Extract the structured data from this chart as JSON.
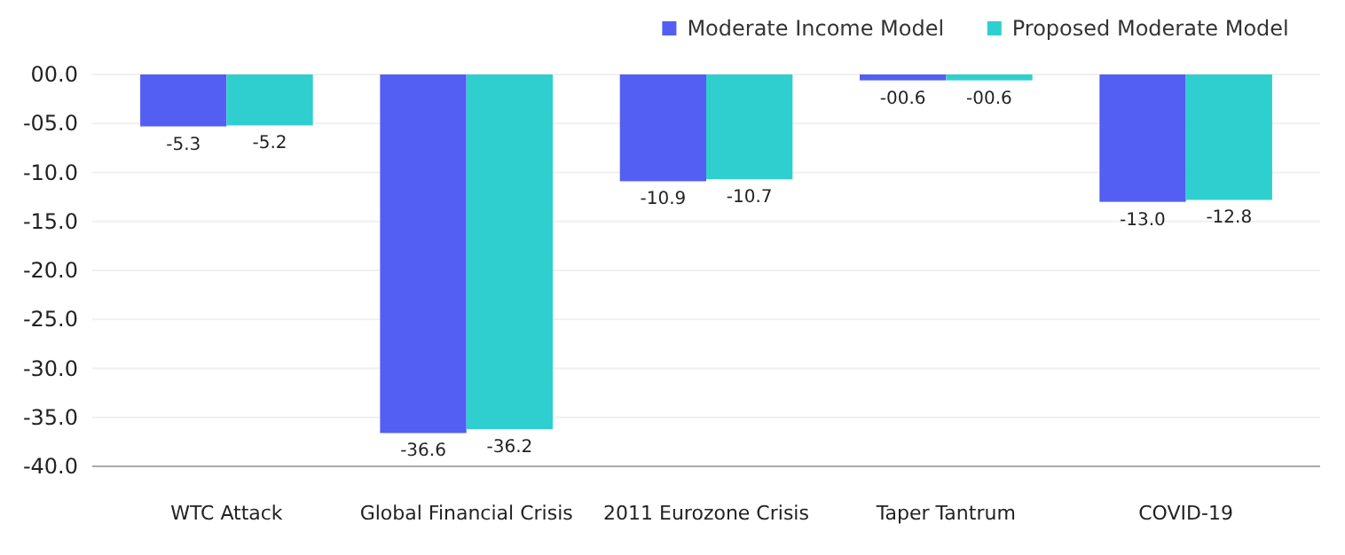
{
  "chart_data": {
    "type": "bar",
    "categories": [
      "WTC Attack",
      "Global Financial Crisis",
      "2011 Eurozone Crisis",
      "Taper Tantrum",
      "COVID-19"
    ],
    "series": [
      {
        "name": "Moderate Income Model",
        "color": "#535ef2",
        "values": [
          -5.3,
          -36.6,
          -10.9,
          -0.6,
          -13.0
        ],
        "value_labels": [
          "-5.3",
          "-36.6",
          "-10.9",
          "-00.6",
          "-13.0"
        ]
      },
      {
        "name": "Proposed Moderate Model",
        "color": "#2fcfcf",
        "values": [
          -5.2,
          -36.2,
          -10.7,
          -0.6,
          -12.8
        ],
        "value_labels": [
          "-5.2",
          "-36.2",
          "-10.7",
          "-00.6",
          "-12.8"
        ]
      }
    ],
    "ylim": [
      -40,
      0
    ],
    "yticks": [
      {
        "value": 0,
        "label": "00.0"
      },
      {
        "value": -5,
        "label": "-05.0"
      },
      {
        "value": -10,
        "label": "-10.0"
      },
      {
        "value": -15,
        "label": "-15.0"
      },
      {
        "value": -20,
        "label": "-20.0"
      },
      {
        "value": -25,
        "label": "-25.0"
      },
      {
        "value": -30,
        "label": "-30.0"
      },
      {
        "value": -35,
        "label": "-35.0"
      },
      {
        "value": -40,
        "label": "-40.0"
      }
    ],
    "grid": "y",
    "legend": "top right"
  }
}
